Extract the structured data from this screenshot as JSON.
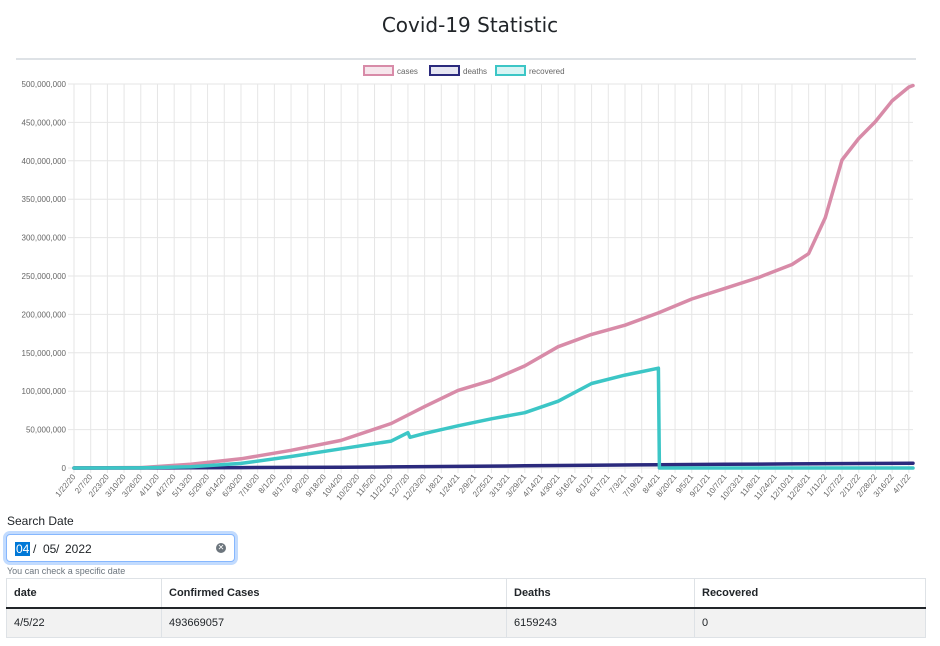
{
  "page": {
    "title": "Covid-19 Statistic"
  },
  "chart_data": {
    "type": "line",
    "title": "",
    "xlabel": "",
    "ylabel": "",
    "ylim": [
      0,
      500000000
    ],
    "y_ticks": [
      "0",
      "50,000,000",
      "100,000,000",
      "150,000,000",
      "200,000,000",
      "250,000,000",
      "300,000,000",
      "350,000,000",
      "400,000,000",
      "450,000,000",
      "500,000,000"
    ],
    "x_tick_labels": [
      "1/22/20",
      "2/7/20",
      "2/23/20",
      "3/10/20",
      "3/26/20",
      "4/11/20",
      "4/27/20",
      "5/13/20",
      "5/29/20",
      "6/14/20",
      "6/30/20",
      "7/16/20",
      "8/1/20",
      "8/17/20",
      "9/2/20",
      "9/18/20",
      "10/4/20",
      "10/20/20",
      "11/5/20",
      "11/21/20",
      "12/7/20",
      "12/23/20",
      "1/8/21",
      "1/24/21",
      "2/9/21",
      "2/25/21",
      "3/13/21",
      "3/29/21",
      "4/14/21",
      "4/30/21",
      "5/16/21",
      "6/1/21",
      "6/17/21",
      "7/3/21",
      "7/19/21",
      "8/4/21",
      "8/20/21",
      "9/5/21",
      "9/21/21",
      "10/7/21",
      "10/23/21",
      "11/8/21",
      "11/24/21",
      "12/10/21",
      "12/26/21",
      "1/11/22",
      "1/27/22",
      "2/12/22",
      "2/28/22",
      "3/16/22",
      "4/1/22"
    ],
    "grid": true,
    "legend_position": "top",
    "series": [
      {
        "name": "cases",
        "color": "#d88ba8",
        "x": [
          "1/22/20",
          "3/26/20",
          "5/13/20",
          "6/30/20",
          "8/17/20",
          "10/4/20",
          "11/21/20",
          "12/23/20",
          "1/24/21",
          "2/25/21",
          "3/29/21",
          "4/30/21",
          "6/1/21",
          "7/3/21",
          "8/4/21",
          "9/5/21",
          "10/7/21",
          "11/8/21",
          "12/10/21",
          "12/26/21",
          "1/11/22",
          "1/27/22",
          "2/12/22",
          "2/28/22",
          "3/16/22",
          "4/1/22",
          "4/5/22"
        ],
        "values": [
          0,
          500000,
          5000000,
          12000000,
          23000000,
          36000000,
          58000000,
          80000000,
          101000000,
          114000000,
          133000000,
          158000000,
          174000000,
          186000000,
          202000000,
          220000000,
          234000000,
          248000000,
          265000000,
          279000000,
          326000000,
          401000000,
          429000000,
          451000000,
          478000000,
          496000000,
          498000000
        ]
      },
      {
        "name": "deaths",
        "color": "#2b2a7d",
        "x": [
          "1/22/20",
          "3/26/20",
          "5/13/20",
          "6/30/20",
          "8/17/20",
          "10/4/20",
          "11/21/20",
          "1/24/21",
          "3/29/21",
          "6/1/21",
          "8/4/21",
          "10/7/21",
          "12/10/21",
          "2/12/22",
          "4/5/22"
        ],
        "values": [
          0,
          20000,
          290000,
          510000,
          780000,
          1040000,
          1380000,
          2140000,
          2800000,
          3540000,
          4280000,
          4790000,
          5300000,
          5850000,
          6159243
        ]
      },
      {
        "name": "recovered",
        "color": "#3cc6c6",
        "x": [
          "1/22/20",
          "3/26/20",
          "5/13/20",
          "6/30/20",
          "8/17/20",
          "10/4/20",
          "11/21/20",
          "12/7/20",
          "12/9/20",
          "12/23/20",
          "1/24/21",
          "2/25/21",
          "3/29/21",
          "4/30/21",
          "6/1/21",
          "7/3/21",
          "8/4/21",
          "8/5/21",
          "8/20/21",
          "12/10/21",
          "4/5/22"
        ],
        "values": [
          0,
          100000,
          1500000,
          6000000,
          15000000,
          25000000,
          35000000,
          46000000,
          40000000,
          45000000,
          55000000,
          64000000,
          72000000,
          87000000,
          110000000,
          121000000,
          130000000,
          0,
          0,
          0,
          0
        ]
      }
    ]
  },
  "search": {
    "label": "Search Date",
    "month": "04",
    "sep": "/",
    "day": "05",
    "year": "2022",
    "help": "You can check a specific date"
  },
  "table": {
    "headers": [
      "date",
      "Confirmed Cases",
      "Deaths",
      "Recovered"
    ],
    "rows": [
      [
        "4/5/22",
        "493669057",
        "6159243",
        "0"
      ]
    ]
  }
}
